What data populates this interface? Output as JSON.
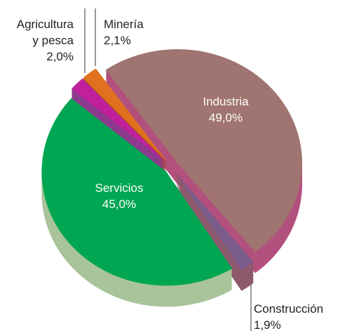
{
  "chart_data": {
    "type": "pie",
    "categories": [
      "Industria",
      "Construcción",
      "Servicios",
      "Agricultura y pesca",
      "Minería"
    ],
    "values": [
      49.0,
      1.9,
      45.0,
      2.0,
      2.1
    ],
    "value_labels": [
      "49,0%",
      "1,9%",
      "45,0%",
      "2,0%",
      "2,1%"
    ],
    "colors": [
      "#a07470",
      "#7b5d8c",
      "#00a651",
      "#c0209c",
      "#e0711f"
    ],
    "side_colors": [
      "#b2507e",
      "#8c5a6c",
      "#a9c39a",
      "#8c3a8e",
      "#b0541a"
    ]
  }
}
